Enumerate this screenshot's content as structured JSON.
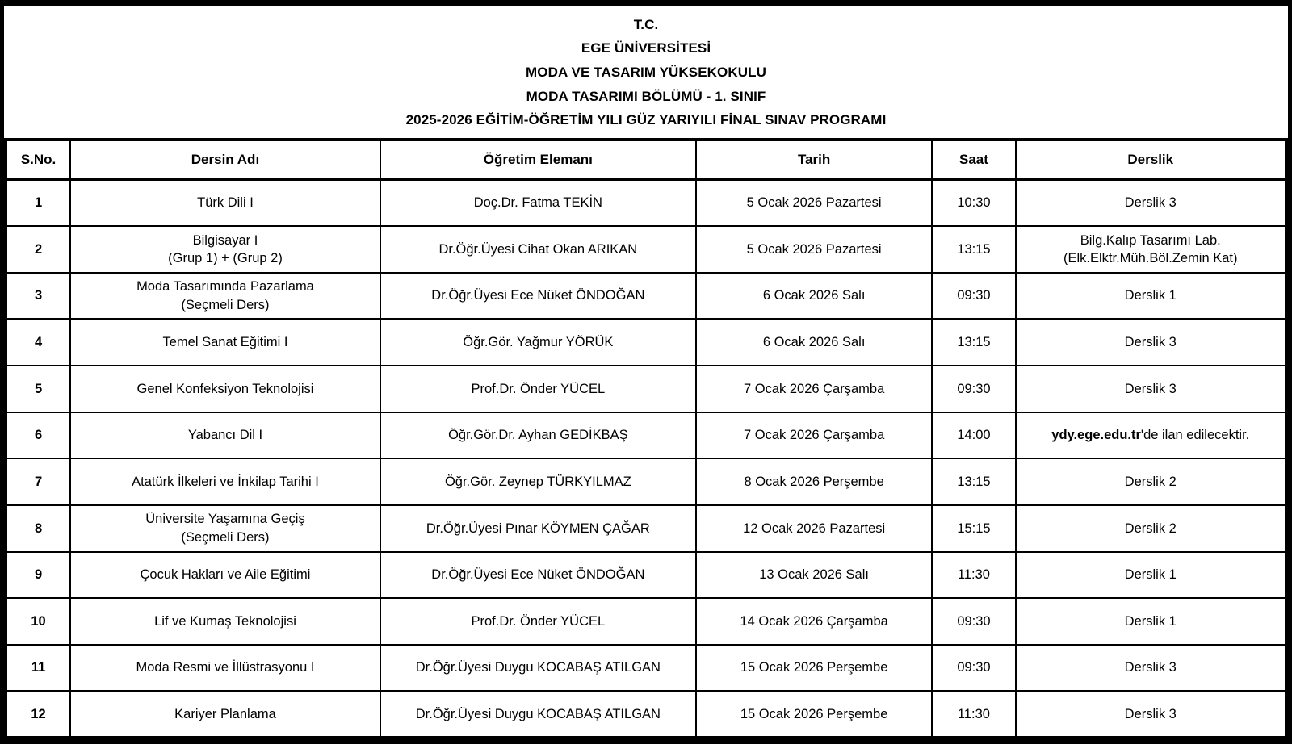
{
  "colors": {
    "border": "#000000",
    "background": "#ffffff",
    "text": "#000000"
  },
  "page": {
    "title_lines": [
      "T.C.",
      "EGE ÜNİVERSİTESİ",
      "MODA VE TASARIM YÜKSEKOKULU",
      "MODA TASARIMI BÖLÜMÜ - 1. SINIF",
      "2025-2026 EĞİTİM-ÖĞRETİM YILI GÜZ YARIYILI FİNAL SINAV PROGRAMI"
    ]
  },
  "table": {
    "columns": [
      "S.No.",
      "Dersin Adı",
      "Öğretim Elemanı",
      "Tarih",
      "Saat",
      "Derslik"
    ],
    "rows": [
      {
        "no": "1",
        "course": [
          "Türk Dili I"
        ],
        "instructor": "Doç.Dr. Fatma TEKİN",
        "date": "5 Ocak 2026 Pazartesi",
        "time": "10:30",
        "room": [
          [
            {
              "text": "Derslik 3",
              "bold": false
            }
          ]
        ]
      },
      {
        "no": "2",
        "course": [
          "Bilgisayar I",
          "(Grup 1) + (Grup 2)"
        ],
        "instructor": "Dr.Öğr.Üyesi Cihat Okan ARIKAN",
        "date": "5 Ocak 2026 Pazartesi",
        "time": "13:15",
        "room": [
          [
            {
              "text": "Bilg.Kalıp Tasarımı Lab.",
              "bold": false
            }
          ],
          [
            {
              "text": "(Elk.Elktr.Müh.Böl.Zemin Kat)",
              "bold": false
            }
          ]
        ]
      },
      {
        "no": "3",
        "course": [
          "Moda Tasarımında Pazarlama",
          "(Seçmeli Ders)"
        ],
        "instructor": "Dr.Öğr.Üyesi Ece Nüket ÖNDOĞAN",
        "date": "6 Ocak 2026 Salı",
        "time": "09:30",
        "room": [
          [
            {
              "text": "Derslik 1",
              "bold": false
            }
          ]
        ]
      },
      {
        "no": "4",
        "course": [
          "Temel Sanat Eğitimi I"
        ],
        "instructor": "Öğr.Gör. Yağmur YÖRÜK",
        "date": "6 Ocak 2026 Salı",
        "time": "13:15",
        "room": [
          [
            {
              "text": "Derslik 3",
              "bold": false
            }
          ]
        ]
      },
      {
        "no": "5",
        "course": [
          "Genel Konfeksiyon Teknolojisi"
        ],
        "instructor": "Prof.Dr. Önder YÜCEL",
        "date": "7 Ocak 2026 Çarşamba",
        "time": "09:30",
        "room": [
          [
            {
              "text": "Derslik 3",
              "bold": false
            }
          ]
        ]
      },
      {
        "no": "6",
        "course": [
          "Yabancı Dil I"
        ],
        "instructor": "Öğr.Gör.Dr. Ayhan GEDİKBAŞ",
        "date": "7 Ocak 2026 Çarşamba",
        "time": "14:00",
        "room": [
          [
            {
              "text": "ydy.ege.edu.tr",
              "bold": true
            },
            {
              "text": "'de ilan edilecektir.",
              "bold": false
            }
          ]
        ]
      },
      {
        "no": "7",
        "course": [
          "Atatürk İlkeleri ve İnkilap Tarihi I"
        ],
        "instructor": "Öğr.Gör. Zeynep TÜRKYILMAZ",
        "date": "8 Ocak 2026 Perşembe",
        "time": "13:15",
        "room": [
          [
            {
              "text": "Derslik 2",
              "bold": false
            }
          ]
        ]
      },
      {
        "no": "8",
        "course": [
          "Üniversite Yaşamına Geçiş",
          "(Seçmeli Ders)"
        ],
        "instructor": "Dr.Öğr.Üyesi Pınar KÖYMEN ÇAĞAR",
        "date": "12 Ocak 2026 Pazartesi",
        "time": "15:15",
        "room": [
          [
            {
              "text": "Derslik 2",
              "bold": false
            }
          ]
        ]
      },
      {
        "no": "9",
        "course": [
          "Çocuk Hakları ve Aile Eğitimi"
        ],
        "instructor": "Dr.Öğr.Üyesi Ece Nüket ÖNDOĞAN",
        "date": "13 Ocak 2026 Salı",
        "time": "11:30",
        "room": [
          [
            {
              "text": "Derslik 1",
              "bold": false
            }
          ]
        ]
      },
      {
        "no": "10",
        "course": [
          "Lif ve Kumaş Teknolojisi"
        ],
        "instructor": "Prof.Dr. Önder YÜCEL",
        "date": "14 Ocak 2026 Çarşamba",
        "time": "09:30",
        "room": [
          [
            {
              "text": "Derslik 1",
              "bold": false
            }
          ]
        ]
      },
      {
        "no": "11",
        "course": [
          "Moda Resmi ve İllüstrasyonu I"
        ],
        "instructor": "Dr.Öğr.Üyesi Duygu KOCABAŞ ATILGAN",
        "date": "15 Ocak 2026 Perşembe",
        "time": "09:30",
        "room": [
          [
            {
              "text": "Derslik 3",
              "bold": false
            }
          ]
        ]
      },
      {
        "no": "12",
        "course": [
          "Kariyer Planlama"
        ],
        "instructor": "Dr.Öğr.Üyesi Duygu KOCABAŞ ATILGAN",
        "date": "15 Ocak 2026 Perşembe",
        "time": "11:30",
        "room": [
          [
            {
              "text": "Derslik 3",
              "bold": false
            }
          ]
        ]
      }
    ]
  }
}
